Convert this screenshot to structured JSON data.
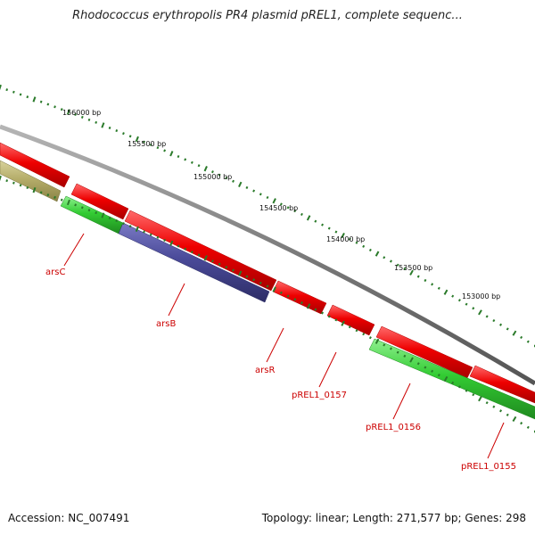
{
  "title": "Rhodococcus erythropolis PR4 plasmid pREL1, complete sequenc...",
  "footer": {
    "accession": "Accession: NC_007491",
    "summary": "Topology: linear; Length: 271,577 bp; Genes: 298"
  },
  "ruler_labels": [
    "156000 bp",
    "155500 bp",
    "155000 bp",
    "154500 bp",
    "154000 bp",
    "153500 bp",
    "153000 bp"
  ],
  "gene_labels": [
    "arsC",
    "arsB",
    "arsR",
    "pREL1_0157",
    "pREL1_0156",
    "pREL1_0155"
  ],
  "colors": {
    "backbone": "#7a7a7a",
    "red_gene": "#ee0000",
    "green_gene": "#33cc33",
    "blue_gene": "#4a4a99",
    "olive_gene": "#b5ad6a",
    "tick": "#2a7a2a",
    "label_red": "#cc0000"
  }
}
